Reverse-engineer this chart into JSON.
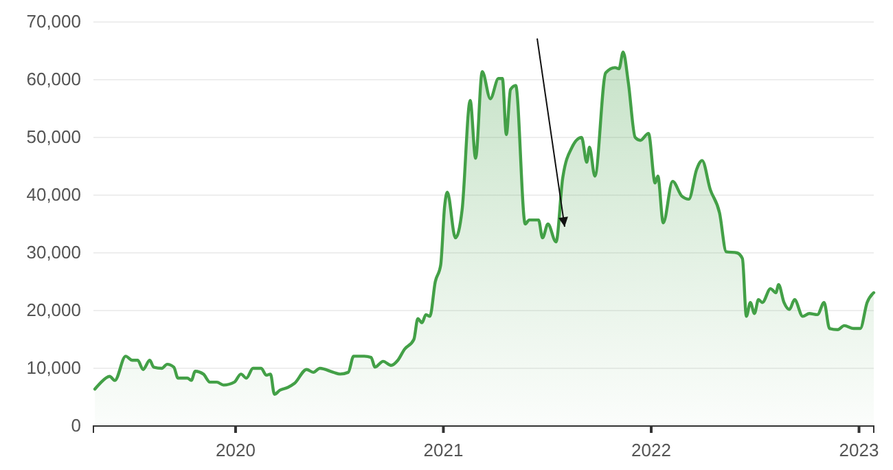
{
  "chart_data": {
    "type": "area",
    "x": [
      2019.323,
      2019.348,
      2019.394,
      2019.419,
      2019.471,
      2019.503,
      2019.529,
      2019.555,
      2019.587,
      2019.606,
      2019.645,
      2019.671,
      2019.703,
      2019.723,
      2019.768,
      2019.787,
      2019.806,
      2019.845,
      2019.877,
      2019.91,
      2019.942,
      2019.994,
      2020.026,
      2020.052,
      2020.084,
      2020.123,
      2020.148,
      2020.168,
      2020.187,
      2020.213,
      2020.252,
      2020.284,
      2020.342,
      2020.374,
      2020.406,
      2020.471,
      2020.503,
      2020.542,
      2020.568,
      2020.619,
      2020.652,
      2020.671,
      2020.71,
      2020.748,
      2020.781,
      2020.813,
      2020.858,
      2020.877,
      2020.897,
      2020.916,
      2020.935,
      2020.961,
      2020.987,
      2021.006,
      2021.019,
      2021.058,
      2021.09,
      2021.129,
      2021.155,
      2021.187,
      2021.226,
      2021.265,
      2021.284,
      2021.303,
      2021.323,
      2021.348,
      2021.394,
      2021.413,
      2021.458,
      2021.477,
      2021.503,
      2021.542,
      2021.574,
      2021.619,
      2021.665,
      2021.69,
      2021.703,
      2021.729,
      2021.781,
      2021.826,
      2021.845,
      2021.865,
      2021.89,
      2021.923,
      2021.948,
      2021.987,
      2022.019,
      2022.032,
      2022.058,
      2022.103,
      2022.148,
      2022.181,
      2022.219,
      2022.245,
      2022.284,
      2022.329,
      2022.361,
      2022.413,
      2022.439,
      2022.458,
      2022.477,
      2022.497,
      2022.516,
      2022.535,
      2022.574,
      2022.6,
      2022.613,
      2022.639,
      2022.665,
      2022.69,
      2022.729,
      2022.761,
      2022.8,
      2022.832,
      2022.858,
      2022.897,
      2022.929,
      2022.974,
      2023.006,
      2023.039,
      2023.071
    ],
    "series": [
      {
        "color": "#43a047",
        "values": [
          6400,
          7400,
          8600,
          7900,
          12100,
          11400,
          11400,
          9800,
          11400,
          10200,
          10000,
          10700,
          10200,
          8300,
          8300,
          7900,
          9500,
          9000,
          7600,
          7600,
          7100,
          7600,
          9000,
          8300,
          10000,
          10000,
          8800,
          9000,
          5500,
          6200,
          6700,
          7400,
          9800,
          9300,
          10000,
          9300,
          9000,
          9300,
          12100,
          12100,
          11900,
          10200,
          11200,
          10500,
          11400,
          13300,
          15000,
          18600,
          17900,
          19300,
          19000,
          25000,
          27900,
          38100,
          40500,
          32600,
          37400,
          56400,
          46400,
          61400,
          56700,
          60200,
          60200,
          50500,
          58300,
          59000,
          35000,
          35700,
          35700,
          32600,
          35000,
          31900,
          42900,
          48300,
          50000,
          45700,
          48300,
          43300,
          61200,
          62100,
          61900,
          64800,
          59500,
          50000,
          49500,
          50700,
          42100,
          43300,
          35200,
          42400,
          39800,
          39300,
          44500,
          46000,
          41000,
          36900,
          30200,
          30000,
          29000,
          19000,
          21400,
          19500,
          21900,
          21400,
          23800,
          23100,
          24500,
          21400,
          20200,
          21900,
          19000,
          19500,
          19300,
          21400,
          16900,
          16700,
          17400,
          16900,
          16900,
          21400,
          23100
        ]
      }
    ],
    "xlim": [
      2019.316,
      2023.071
    ],
    "xticks": [
      2020,
      2021,
      2022,
      2023
    ],
    "ylim": [
      0,
      70000
    ],
    "yticks": [
      {
        "value": 0,
        "label": "0"
      },
      {
        "value": 10000,
        "label": "10,000"
      },
      {
        "value": 20000,
        "label": "20,000"
      },
      {
        "value": 30000,
        "label": "30,000"
      },
      {
        "value": 40000,
        "label": "40,000"
      },
      {
        "value": 50000,
        "label": "50,000"
      },
      {
        "value": 60000,
        "label": "60,000"
      },
      {
        "value": 70000,
        "label": "70,000"
      }
    ],
    "grid": "y"
  }
}
